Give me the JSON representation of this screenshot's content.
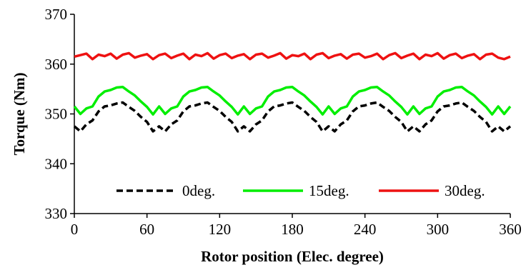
{
  "chart_data": {
    "type": "line",
    "xlabel": "Rotor position (Elec. degree)",
    "ylabel": "Torque (Nm)",
    "xlim": [
      0,
      360
    ],
    "ylim": [
      330,
      370
    ],
    "xticks": [
      "0",
      "60",
      "120",
      "180",
      "240",
      "300",
      "360"
    ],
    "yticks": [
      "330",
      "340",
      "350",
      "360",
      "370"
    ],
    "grid": false,
    "legend_position": "bottom",
    "x": [
      0,
      5,
      10,
      15,
      20,
      25,
      30,
      35,
      40,
      45,
      50,
      55,
      60,
      65,
      70,
      75,
      80,
      85,
      90,
      95,
      100,
      105,
      110,
      115,
      120,
      125,
      130,
      135,
      140,
      145,
      150,
      155,
      160,
      165,
      170,
      175,
      180,
      185,
      190,
      195,
      200,
      205,
      210,
      215,
      220,
      225,
      230,
      235,
      240,
      245,
      250,
      255,
      260,
      265,
      270,
      275,
      280,
      285,
      290,
      295,
      300,
      305,
      310,
      315,
      320,
      325,
      330,
      335,
      340,
      345,
      350,
      355,
      360
    ],
    "series": [
      {
        "name": "0deg.",
        "color": "#000000",
        "dash": true,
        "values": [
          347.5,
          346.5,
          347.9,
          348.7,
          350.5,
          351.5,
          351.7,
          352.1,
          352.3,
          351.4,
          350.6,
          349.4,
          348.4,
          346.5,
          347.5,
          346.5,
          347.9,
          348.7,
          350.5,
          351.5,
          351.7,
          352.1,
          352.3,
          351.4,
          350.6,
          349.4,
          348.4,
          346.5,
          347.5,
          346.5,
          347.9,
          348.7,
          350.5,
          351.5,
          351.7,
          352.1,
          352.3,
          351.4,
          350.6,
          349.4,
          348.4,
          346.5,
          347.5,
          346.5,
          347.9,
          348.7,
          350.5,
          351.5,
          351.7,
          352.1,
          352.3,
          351.4,
          350.6,
          349.4,
          348.4,
          346.5,
          347.5,
          346.5,
          347.9,
          348.7,
          350.5,
          351.5,
          351.7,
          352.1,
          352.3,
          351.4,
          350.6,
          349.4,
          348.4,
          346.5,
          347.5,
          346.5,
          347.5
        ]
      },
      {
        "name": "15deg.",
        "color": "#00ee00",
        "dash": false,
        "values": [
          351.5,
          350.0,
          351.1,
          351.5,
          353.5,
          354.5,
          354.8,
          355.3,
          355.4,
          354.5,
          353.7,
          352.5,
          351.4,
          349.9,
          351.5,
          350.0,
          351.1,
          351.5,
          353.5,
          354.5,
          354.8,
          355.3,
          355.4,
          354.5,
          353.7,
          352.5,
          351.4,
          349.9,
          351.5,
          350.0,
          351.1,
          351.5,
          353.5,
          354.5,
          354.8,
          355.3,
          355.4,
          354.5,
          353.7,
          352.5,
          351.4,
          349.9,
          351.5,
          350.0,
          351.1,
          351.5,
          353.5,
          354.5,
          354.8,
          355.3,
          355.4,
          354.5,
          353.7,
          352.5,
          351.4,
          349.9,
          351.5,
          350.0,
          351.1,
          351.5,
          353.5,
          354.5,
          354.8,
          355.3,
          355.4,
          354.5,
          353.7,
          352.5,
          351.4,
          349.9,
          351.5,
          350.0,
          351.5
        ]
      },
      {
        "name": "30deg.",
        "color": "#ee1111",
        "dash": false,
        "values": [
          361.5,
          361.8,
          362.1,
          361.0,
          361.9,
          361.6,
          362.1,
          361.1,
          361.9,
          362.2,
          361.3,
          361.7,
          362.0,
          361.0,
          361.8,
          362.1,
          361.2,
          361.7,
          362.1,
          361.0,
          361.9,
          361.6,
          362.2,
          361.1,
          361.8,
          362.1,
          361.2,
          361.7,
          362.0,
          361.0,
          361.9,
          362.1,
          361.3,
          361.7,
          362.2,
          361.1,
          361.8,
          361.6,
          362.1,
          361.0,
          361.9,
          362.2,
          361.2,
          361.7,
          362.0,
          361.1,
          361.9,
          362.1,
          361.3,
          361.6,
          362.1,
          361.0,
          361.8,
          362.2,
          361.2,
          361.7,
          362.1,
          361.0,
          361.9,
          361.6,
          362.2,
          361.1,
          361.8,
          362.1,
          361.2,
          361.7,
          362.0,
          361.0,
          361.9,
          362.1,
          361.3,
          361.0,
          361.5
        ]
      }
    ]
  }
}
